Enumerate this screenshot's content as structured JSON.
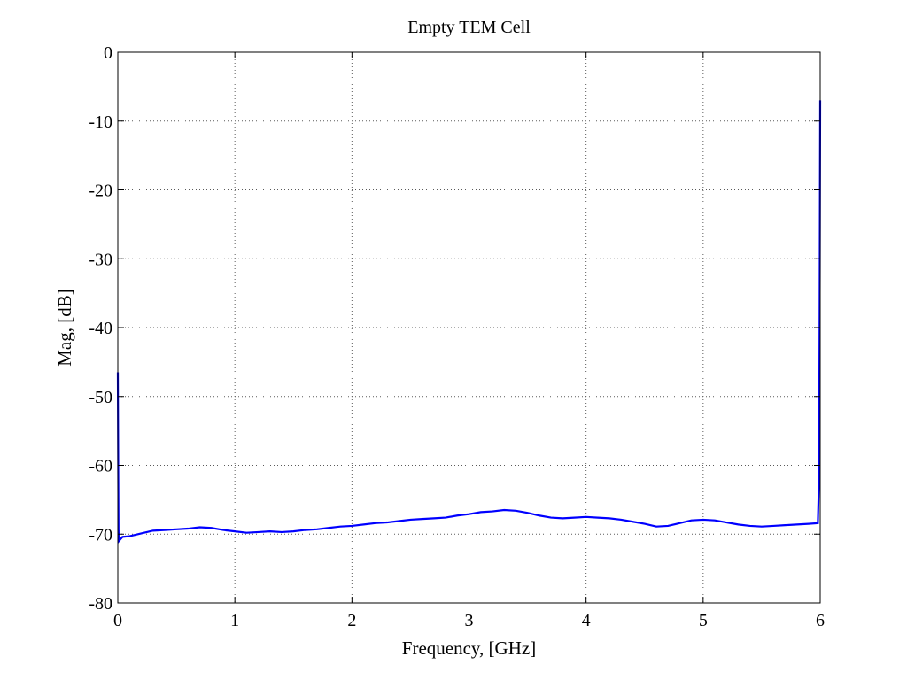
{
  "chart_data": {
    "type": "line",
    "title": "Empty TEM Cell",
    "xlabel": "Frequency, [GHz]",
    "ylabel": "Mag, [dB]",
    "xlim": [
      0,
      6
    ],
    "ylim": [
      -80,
      0
    ],
    "xticks": [
      0,
      1,
      2,
      3,
      4,
      5,
      6
    ],
    "yticks": [
      0,
      -10,
      -20,
      -30,
      -40,
      -50,
      -60,
      -70,
      -80
    ],
    "xtick_labels": [
      "0",
      "1",
      "2",
      "3",
      "4",
      "5",
      "6"
    ],
    "ytick_labels": [
      "0",
      "-10",
      "-20",
      "-30",
      "-40",
      "-50",
      "-60",
      "-70",
      "-80"
    ],
    "grid": true,
    "line_color": "#0000ff",
    "series": [
      {
        "x": [
          0.0,
          0.003,
          0.006,
          0.01,
          0.02,
          0.04,
          0.1,
          0.2,
          0.3,
          0.4,
          0.5,
          0.6,
          0.7,
          0.8,
          0.9,
          1.0,
          1.1,
          1.2,
          1.3,
          1.4,
          1.5,
          1.6,
          1.7,
          1.8,
          1.9,
          2.0,
          2.1,
          2.2,
          2.3,
          2.4,
          2.5,
          2.6,
          2.7,
          2.8,
          2.9,
          3.0,
          3.1,
          3.2,
          3.3,
          3.4,
          3.5,
          3.6,
          3.7,
          3.8,
          3.9,
          4.0,
          4.1,
          4.2,
          4.3,
          4.4,
          4.5,
          4.6,
          4.7,
          4.8,
          4.9,
          5.0,
          5.1,
          5.2,
          5.3,
          5.4,
          5.5,
          5.6,
          5.7,
          5.8,
          5.9,
          5.98,
          5.99,
          5.995,
          6.0
        ],
        "values": [
          -46.5,
          -58.5,
          -69.5,
          -71.0,
          -70.8,
          -70.4,
          -70.3,
          -69.9,
          -69.5,
          -69.4,
          -69.3,
          -69.2,
          -69.0,
          -69.1,
          -69.4,
          -69.6,
          -69.8,
          -69.7,
          -69.6,
          -69.7,
          -69.6,
          -69.4,
          -69.3,
          -69.1,
          -68.9,
          -68.8,
          -68.6,
          -68.4,
          -68.3,
          -68.1,
          -67.9,
          -67.8,
          -67.7,
          -67.6,
          -67.3,
          -67.1,
          -66.8,
          -66.7,
          -66.5,
          -66.6,
          -66.9,
          -67.3,
          -67.6,
          -67.7,
          -67.6,
          -67.5,
          -67.6,
          -67.7,
          -67.9,
          -68.2,
          -68.5,
          -68.9,
          -68.8,
          -68.4,
          -68.0,
          -67.9,
          -68.0,
          -68.3,
          -68.6,
          -68.8,
          -68.9,
          -68.8,
          -68.7,
          -68.6,
          -68.5,
          -68.4,
          -62.0,
          -38.0,
          -7.0
        ]
      }
    ]
  }
}
